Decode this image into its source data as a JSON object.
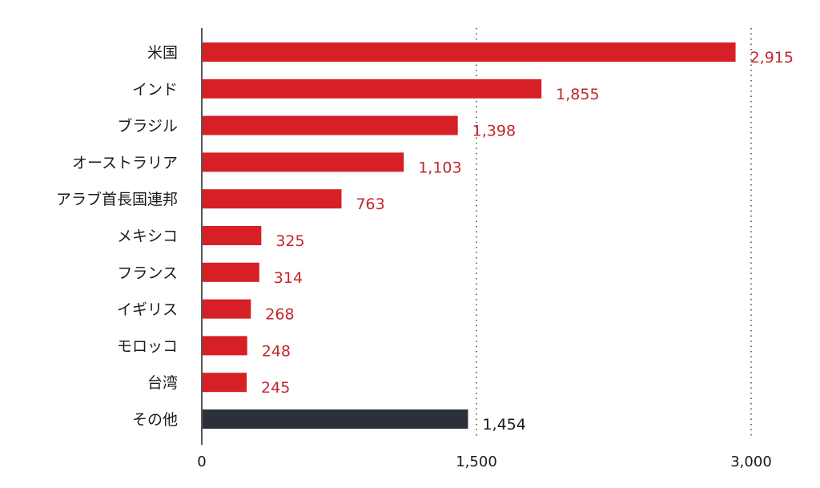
{
  "chart_data": {
    "type": "bar",
    "orientation": "horizontal",
    "title": "",
    "xlabel": "",
    "ylabel": "",
    "categories": [
      "米国",
      "インド",
      "ブラジル",
      "オーストラリア",
      "アラブ首長国連邦",
      "メキシコ",
      "フランス",
      "イギリス",
      "モロッコ",
      "台湾",
      "その他"
    ],
    "values": [
      2915,
      1855,
      1398,
      1103,
      763,
      325,
      314,
      268,
      248,
      245,
      1454
    ],
    "value_labels": [
      "2,915",
      "1,855",
      "1,398",
      "1,103",
      "763",
      "325",
      "314",
      "268",
      "248",
      "245",
      "1,454"
    ],
    "xlim": [
      0,
      3000
    ],
    "xticks": [
      0,
      1500,
      3000
    ],
    "xtick_labels": [
      "0",
      "1,500",
      "3,000"
    ],
    "grid": "dotted vertical at 1,500 and 3,000",
    "colors": {
      "highlight": "#d71f26",
      "other": "#2b3138",
      "highlight_label": "#c4262d",
      "other_label": "#1a1a1a"
    }
  }
}
